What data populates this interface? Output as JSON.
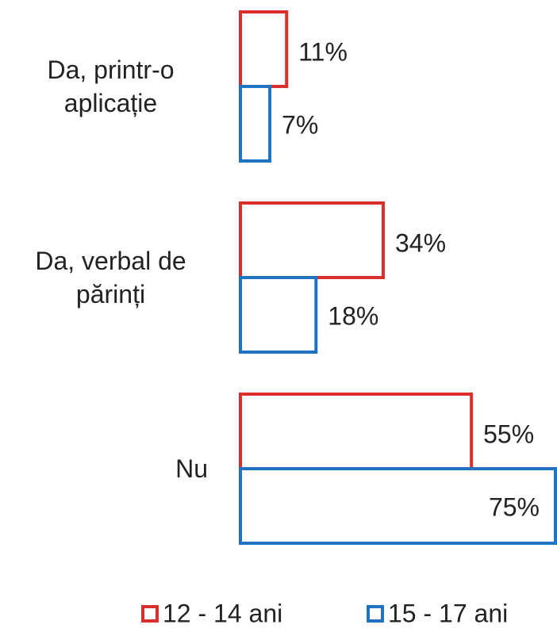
{
  "chart_data": {
    "type": "hbar",
    "categories": [
      "Da, printr-o aplicație",
      "Da, verbal de părinți",
      "Nu"
    ],
    "series": [
      {
        "name": "12 - 14 ani",
        "color": "#d9302c",
        "values": [
          11,
          34,
          55
        ],
        "value_labels": [
          "11%",
          "34%",
          "55%"
        ]
      },
      {
        "name": "15 - 17 ani",
        "color": "#1f73c1",
        "values": [
          7,
          18,
          75
        ],
        "value_labels": [
          "7%",
          "18%",
          "75%"
        ]
      }
    ],
    "xlim": [
      0,
      75
    ],
    "legend": "bottom"
  }
}
